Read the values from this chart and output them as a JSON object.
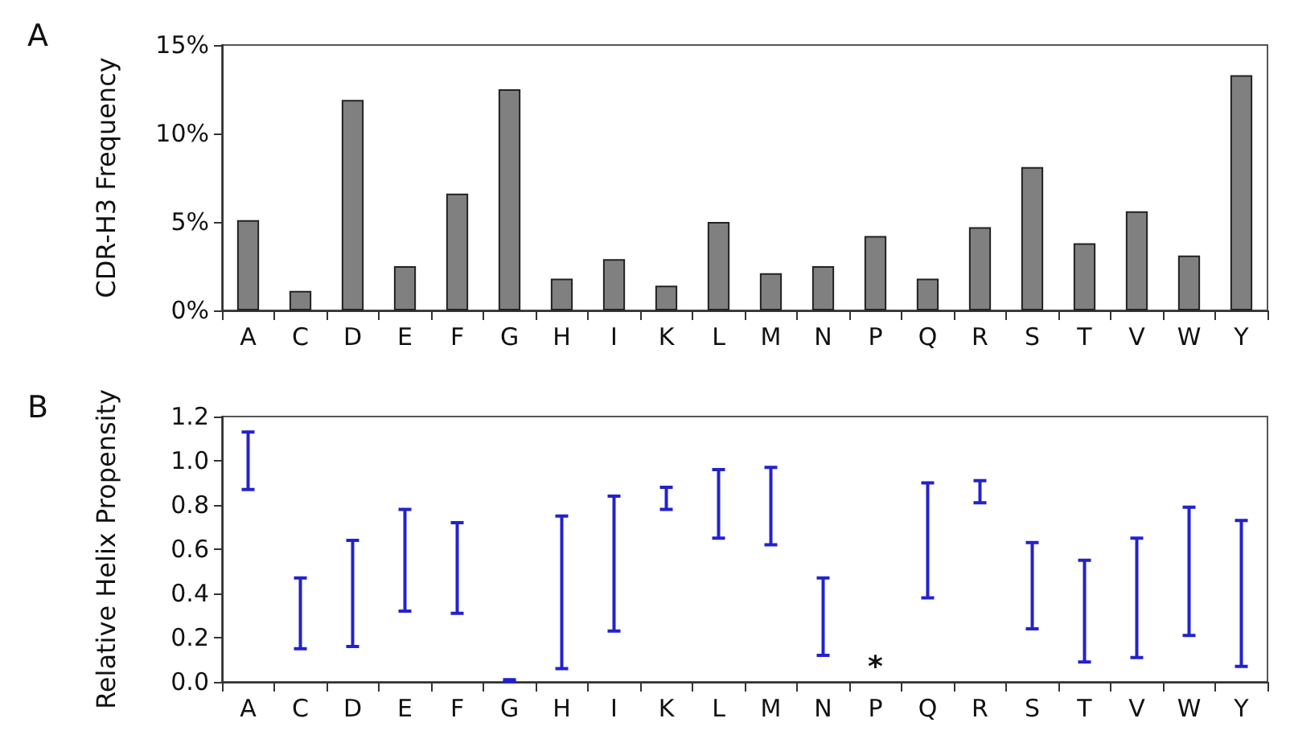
{
  "chart_data": [
    {
      "type": "bar",
      "title": "A",
      "ylabel": "CDR-H3 Frequency",
      "categories": [
        "A",
        "C",
        "D",
        "E",
        "F",
        "G",
        "H",
        "I",
        "K",
        "L",
        "M",
        "N",
        "P",
        "Q",
        "R",
        "S",
        "T",
        "V",
        "W",
        "Y"
      ],
      "values": [
        5.1,
        1.1,
        11.9,
        2.5,
        6.6,
        12.5,
        1.8,
        2.9,
        1.4,
        5.0,
        2.1,
        2.5,
        4.2,
        1.8,
        4.7,
        8.1,
        3.8,
        5.6,
        3.1,
        13.3
      ],
      "color": "#808080",
      "ylim": [
        0,
        15
      ],
      "yticks": [
        {
          "value": 0,
          "label": "0%"
        },
        {
          "value": 5,
          "label": "5%"
        },
        {
          "value": 10,
          "label": "10%"
        },
        {
          "value": 15,
          "label": "15%"
        }
      ],
      "grid": false
    },
    {
      "type": "bar",
      "title": "B",
      "ylabel": "Relative Helix Propensity",
      "categories": [
        "A",
        "C",
        "D",
        "E",
        "F",
        "G",
        "H",
        "I",
        "K",
        "L",
        "M",
        "N",
        "P",
        "Q",
        "R",
        "S",
        "T",
        "V",
        "W",
        "Y"
      ],
      "base": [
        0.87,
        0.15,
        0.16,
        0.32,
        0.31,
        0.0,
        0.06,
        0.23,
        0.78,
        0.65,
        0.62,
        0.12,
        null,
        0.38,
        0.81,
        0.24,
        0.09,
        0.11,
        0.21,
        0.07
      ],
      "values": [
        0.26,
        0.32,
        0.48,
        0.46,
        0.41,
        0.01,
        0.69,
        0.61,
        0.1,
        0.31,
        0.35,
        0.35,
        null,
        0.52,
        0.1,
        0.39,
        0.46,
        0.54,
        0.58,
        0.66
      ],
      "color": "#2222cc",
      "ylim": [
        0,
        1.2
      ],
      "yticks": [
        {
          "value": 0,
          "label": "0.0"
        },
        {
          "value": 0.2,
          "label": "0.2"
        },
        {
          "value": 0.4,
          "label": "0.4"
        },
        {
          "value": 0.6,
          "label": "0.6"
        },
        {
          "value": 0.8,
          "label": "0.8"
        },
        {
          "value": 1.0,
          "label": "1.0"
        },
        {
          "value": 1.2,
          "label": "1.2"
        }
      ],
      "annotations": [
        "*"
      ],
      "grid": false
    }
  ]
}
